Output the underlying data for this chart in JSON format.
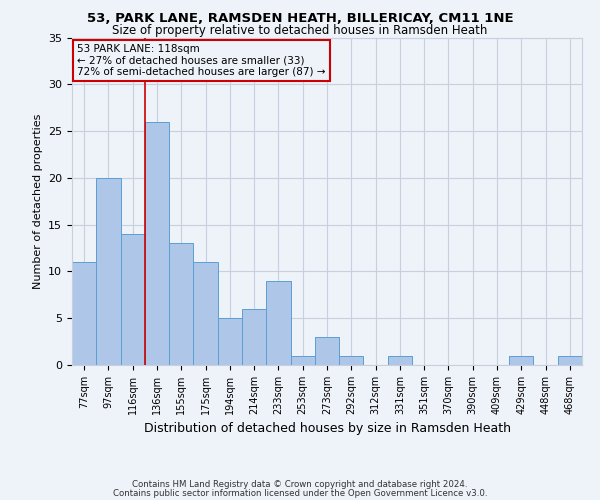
{
  "title1": "53, PARK LANE, RAMSDEN HEATH, BILLERICAY, CM11 1NE",
  "title2": "Size of property relative to detached houses in Ramsden Heath",
  "xlabel": "Distribution of detached houses by size in Ramsden Heath",
  "ylabel": "Number of detached properties",
  "footnote1": "Contains HM Land Registry data © Crown copyright and database right 2024.",
  "footnote2": "Contains public sector information licensed under the Open Government Licence v3.0.",
  "annotation_line1": "53 PARK LANE: 118sqm",
  "annotation_line2": "← 27% of detached houses are smaller (33)",
  "annotation_line3": "72% of semi-detached houses are larger (87) →",
  "bar_labels": [
    "77sqm",
    "97sqm",
    "116sqm",
    "136sqm",
    "155sqm",
    "175sqm",
    "194sqm",
    "214sqm",
    "233sqm",
    "253sqm",
    "273sqm",
    "292sqm",
    "312sqm",
    "331sqm",
    "351sqm",
    "370sqm",
    "390sqm",
    "409sqm",
    "429sqm",
    "448sqm",
    "468sqm"
  ],
  "bar_values": [
    11,
    20,
    14,
    26,
    13,
    11,
    5,
    6,
    9,
    1,
    3,
    1,
    0,
    1,
    0,
    0,
    0,
    0,
    1,
    0,
    1
  ],
  "bar_color": "#aec6e8",
  "bar_edge_color": "#5a9fd4",
  "vline_color": "#cc0000",
  "bg_color": "#eef2f9",
  "grid_color": "#c8d0e0",
  "annotation_box_edge": "#cc0000",
  "ylim": [
    0,
    35
  ],
  "yticks": [
    0,
    5,
    10,
    15,
    20,
    25,
    30,
    35
  ]
}
